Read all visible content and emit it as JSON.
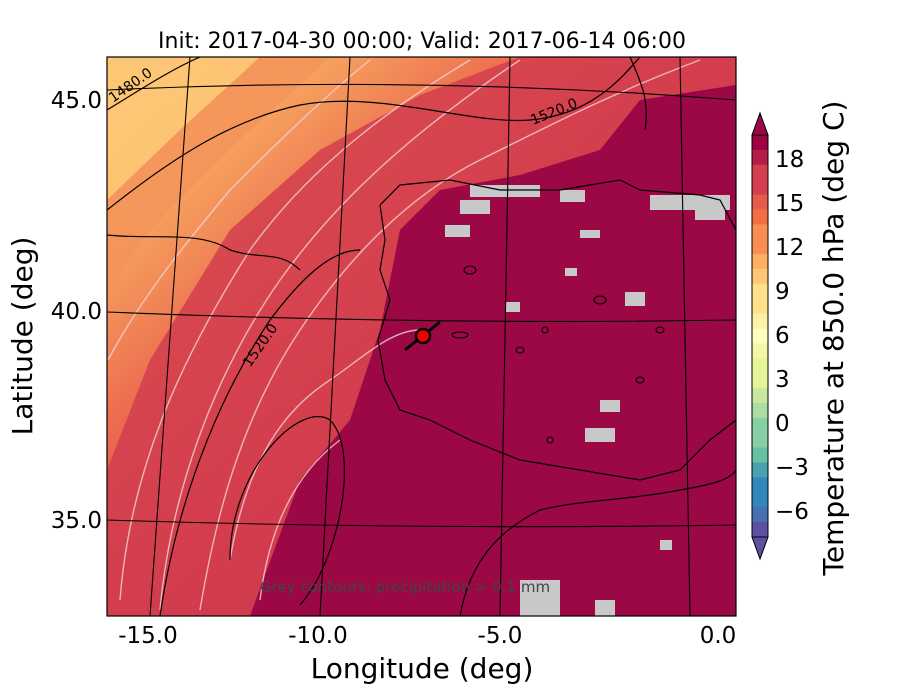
{
  "title": "Init: 2017-04-30 00:00; Valid: 2017-06-14 06:00",
  "x_axis": {
    "label": "Longitude (deg)",
    "ticks": [
      "-15.0",
      "-10.0",
      "-5.0",
      "0.0"
    ]
  },
  "y_axis": {
    "label": "Latitude (deg)",
    "ticks": [
      "45.0",
      "40.0",
      "35.0"
    ]
  },
  "colorbar": {
    "label": "Temperature at 850.0 hPa (deg C)",
    "ticks": [
      "18",
      "15",
      "12",
      "9",
      "6",
      "3",
      "0",
      "−3",
      "−6"
    ],
    "extend": "both",
    "colormap": "Spectral_r"
  },
  "contour_labels": {
    "c1480": "1480.0",
    "c1520_top": "1520.0",
    "c1520_left": "1520.0"
  },
  "note": "Grey contours: precipitation > 0.1 mm",
  "marker": {
    "type": "location",
    "color": "#ee0000"
  },
  "colors": {
    "hot": "#9b0845",
    "warm": "#d23d4e",
    "orange": "#f2784b",
    "yellow": "#fdc675",
    "grey": "#c8c8c8"
  }
}
